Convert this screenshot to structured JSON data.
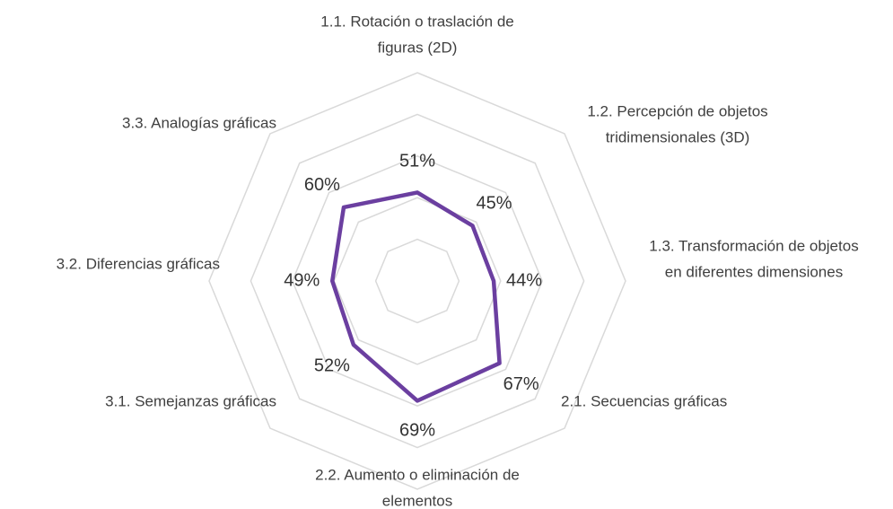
{
  "chart_data": {
    "type": "radar",
    "categories": [
      [
        "1.1. Rotación o traslación de",
        "figuras (2D)"
      ],
      [
        "1.2. Percepción de objetos",
        "tridimensionales (3D)"
      ],
      [
        "1.3. Transformación de objetos",
        "en diferentes dimensiones"
      ],
      [
        "2.1. Secuencias gráficas"
      ],
      [
        "2.2. Aumento o eliminación de",
        "elementos"
      ],
      [
        "3.1. Semejanzas gráficas"
      ],
      [
        "3.2. Diferencias gráficas"
      ],
      [
        "3.3. Analogías gráficas"
      ]
    ],
    "values": [
      51,
      45,
      44,
      67,
      69,
      52,
      49,
      60
    ],
    "value_labels": [
      "51%",
      "45%",
      "44%",
      "67%",
      "69%",
      "52%",
      "49%",
      "60%"
    ],
    "color": "#6b3fa0",
    "rlim": [
      0,
      120
    ],
    "rticks": [
      24,
      48,
      72,
      96,
      120
    ],
    "grid": true
  }
}
